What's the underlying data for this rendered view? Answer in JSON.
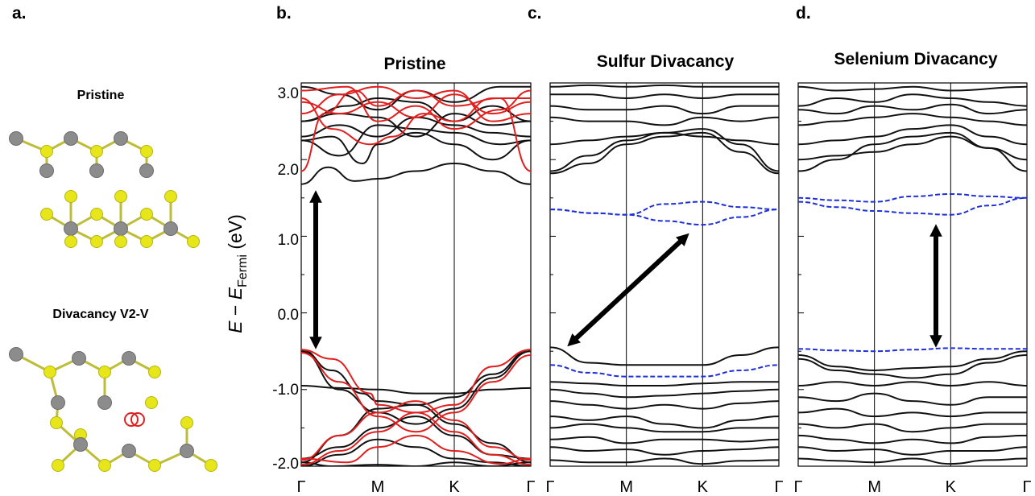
{
  "panel_labels": [
    "a.",
    "b.",
    "c.",
    "d."
  ],
  "structures": {
    "top_title": "Pristine",
    "bottom_title": "Divacancy V2-V"
  },
  "y_axis": {
    "label_E": "E",
    "label_minus": " − ",
    "label_E2": "E",
    "label_sub": "Fermi",
    "label_unit": " (eV)",
    "ticks": [
      "3.0",
      "2.0",
      "1.0",
      "0.0",
      "-1.0",
      "-2.0"
    ]
  },
  "colors": {
    "atom_metal": "#8c8c8c",
    "atom_chalcogen": "#e6e61a",
    "vacancy_marker": "#e02020",
    "band_black": "#111111",
    "band_red": "#e01f1f",
    "defect_blue": "#1f2fd6"
  },
  "chart_data": [
    {
      "type": "line",
      "title": "Pristine",
      "ylabel": "E − E_Fermi (eV)",
      "ylim": [
        -2.0,
        3.0
      ],
      "x_kpoints": [
        "Γ",
        "M",
        "K",
        "Γ"
      ],
      "series": [
        {
          "name": "",
          "values": [
            [
              0,
              1.68
            ],
            [
              0.3,
              1.72
            ],
            [
              0.6,
              1.7
            ],
            [
              0.8,
              1.9
            ],
            [
              1.0,
              1.78
            ],
            [
              1.5,
              1.75
            ],
            [
              2.0,
              1.92
            ],
            [
              2.5,
              1.8
            ],
            [
              3.0,
              1.68
            ]
          ]
        },
        {
          "name": "",
          "values": [
            [
              0,
              -0.45
            ],
            [
              0.5,
              -0.7
            ],
            [
              1.0,
              -1.0
            ],
            [
              1.5,
              -1.2
            ],
            [
              2.0,
              -1.0
            ],
            [
              2.5,
              -0.7
            ],
            [
              3.0,
              -0.45
            ]
          ]
        },
        {
          "name": "",
          "values": [
            [
              0,
              -0.45
            ],
            [
              0.5,
              -0.9
            ],
            [
              1.0,
              -1.3
            ],
            [
              1.5,
              -1.5
            ],
            [
              2.0,
              -1.3
            ],
            [
              2.5,
              -0.9
            ],
            [
              3.0,
              -0.45
            ]
          ]
        }
      ]
    },
    {
      "type": "line",
      "title": "Sulfur Divacancy",
      "ylim": [
        -2.0,
        3.0
      ],
      "x_kpoints": [
        "Γ",
        "M",
        "K",
        "Γ"
      ],
      "series": [
        {
          "name": "",
          "values": [
            [
              0,
              1.35
            ],
            [
              1.0,
              1.3
            ],
            [
              2.0,
              1.15
            ],
            [
              3.0,
              1.35
            ]
          ]
        },
        {
          "name": "",
          "values": [
            [
              0,
              1.35
            ],
            [
              1.0,
              1.28
            ],
            [
              2.0,
              1.45
            ],
            [
              3.0,
              1.35
            ]
          ]
        },
        {
          "name": "",
          "values": [
            [
              0,
              -0.68
            ],
            [
              1.0,
              -0.82
            ],
            [
              2.0,
              -0.82
            ],
            [
              3.0,
              -0.68
            ]
          ]
        }
      ]
    },
    {
      "type": "line",
      "title": "Selenium Divacancy",
      "ylim": [
        -2.0,
        3.0
      ],
      "x_kpoints": [
        "Γ",
        "M",
        "K",
        "Γ"
      ],
      "series": [
        {
          "name": "",
          "values": [
            [
              0,
              1.5
            ],
            [
              1.0,
              1.45
            ],
            [
              2.0,
              1.55
            ],
            [
              3.0,
              1.5
            ]
          ]
        },
        {
          "name": "",
          "values": [
            [
              0,
              1.5
            ],
            [
              1.0,
              1.33
            ],
            [
              2.0,
              1.28
            ],
            [
              3.0,
              1.5
            ]
          ]
        },
        {
          "name": "",
          "values": [
            [
              0,
              -0.47
            ],
            [
              1.0,
              -0.5
            ],
            [
              2.0,
              -0.46
            ],
            [
              3.0,
              -0.47
            ]
          ]
        }
      ]
    }
  ]
}
